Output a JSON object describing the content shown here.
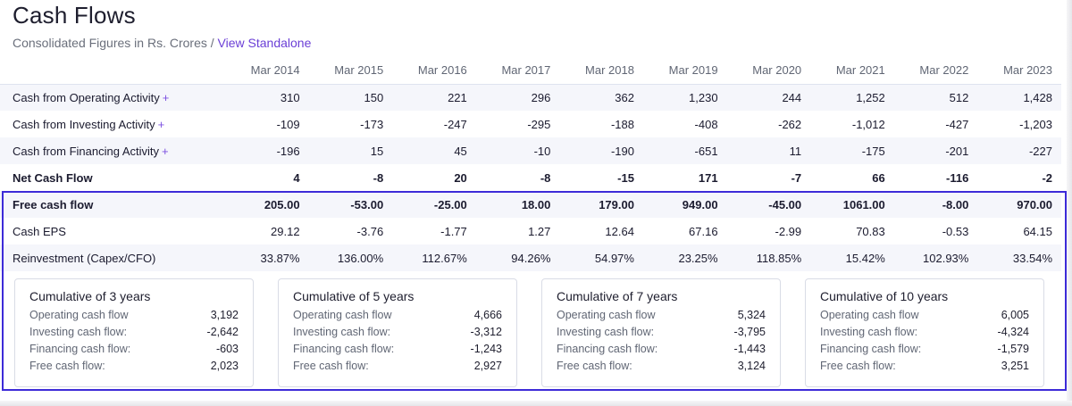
{
  "title": "Cash Flows",
  "subtitle": {
    "prefix": "Consolidated Figures in Rs. Crores /",
    "link": "View Standalone"
  },
  "table": {
    "years": [
      "Mar 2014",
      "Mar 2015",
      "Mar 2016",
      "Mar 2017",
      "Mar 2018",
      "Mar 2019",
      "Mar 2020",
      "Mar 2021",
      "Mar 2022",
      "Mar 2023"
    ],
    "rows": [
      {
        "label": "Cash from Operating Activity",
        "expand": "+",
        "bold": false,
        "stripe": true,
        "values": [
          "310",
          "150",
          "221",
          "296",
          "362",
          "1,230",
          "244",
          "1,252",
          "512",
          "1,428"
        ]
      },
      {
        "label": "Cash from Investing Activity",
        "expand": "+",
        "bold": false,
        "stripe": false,
        "values": [
          "-109",
          "-173",
          "-247",
          "-295",
          "-188",
          "-408",
          "-262",
          "-1,012",
          "-427",
          "-1,203"
        ]
      },
      {
        "label": "Cash from Financing Activity",
        "expand": "+",
        "bold": false,
        "stripe": true,
        "values": [
          "-196",
          "15",
          "45",
          "-10",
          "-190",
          "-651",
          "11",
          "-175",
          "-201",
          "-227"
        ]
      },
      {
        "label": "Net Cash Flow",
        "expand": "",
        "bold": true,
        "stripe": false,
        "values": [
          "4",
          "-8",
          "20",
          "-8",
          "-15",
          "171",
          "-7",
          "66",
          "-116",
          "-2"
        ]
      },
      {
        "label": "Free cash flow",
        "expand": "",
        "bold": true,
        "stripe": true,
        "values": [
          "205.00",
          "-53.00",
          "-25.00",
          "18.00",
          "179.00",
          "949.00",
          "-45.00",
          "1061.00",
          "-8.00",
          "970.00"
        ]
      },
      {
        "label": "Cash EPS",
        "expand": "",
        "bold": false,
        "stripe": false,
        "values": [
          "29.12",
          "-3.76",
          "-1.77",
          "1.27",
          "12.64",
          "67.16",
          "-2.99",
          "70.83",
          "-0.53",
          "64.15"
        ]
      },
      {
        "label": "Reinvestment (Capex/CFO)",
        "expand": "",
        "bold": false,
        "stripe": true,
        "values": [
          "33.87%",
          "136.00%",
          "112.67%",
          "94.26%",
          "54.97%",
          "23.25%",
          "118.85%",
          "15.42%",
          "102.93%",
          "33.54%"
        ]
      }
    ]
  },
  "cumulative": [
    {
      "title": "Cumulative of 3 years",
      "items": [
        {
          "k": "Operating cash flow",
          "v": "3,192"
        },
        {
          "k": "Investing cash flow:",
          "v": "-2,642"
        },
        {
          "k": "Financing cash flow:",
          "v": "-603"
        },
        {
          "k": "Free cash flow:",
          "v": "2,023"
        }
      ]
    },
    {
      "title": "Cumulative of 5 years",
      "items": [
        {
          "k": "Operating cash flow",
          "v": "4,666"
        },
        {
          "k": "Investing cash flow:",
          "v": "-3,312"
        },
        {
          "k": "Financing cash flow:",
          "v": "-1,243"
        },
        {
          "k": "Free cash flow:",
          "v": "2,927"
        }
      ]
    },
    {
      "title": "Cumulative of 7 years",
      "items": [
        {
          "k": "Operating cash flow",
          "v": "5,324"
        },
        {
          "k": "Investing cash flow:",
          "v": "-3,795"
        },
        {
          "k": "Financing cash flow:",
          "v": "-1,443"
        },
        {
          "k": "Free cash flow:",
          "v": "3,124"
        }
      ]
    },
    {
      "title": "Cumulative of 10 years",
      "items": [
        {
          "k": "Operating cash flow",
          "v": "6,005"
        },
        {
          "k": "Investing cash flow:",
          "v": "-4,324"
        },
        {
          "k": "Financing cash flow:",
          "v": "-1,579"
        },
        {
          "k": "Free cash flow:",
          "v": "3,251"
        }
      ]
    }
  ]
}
